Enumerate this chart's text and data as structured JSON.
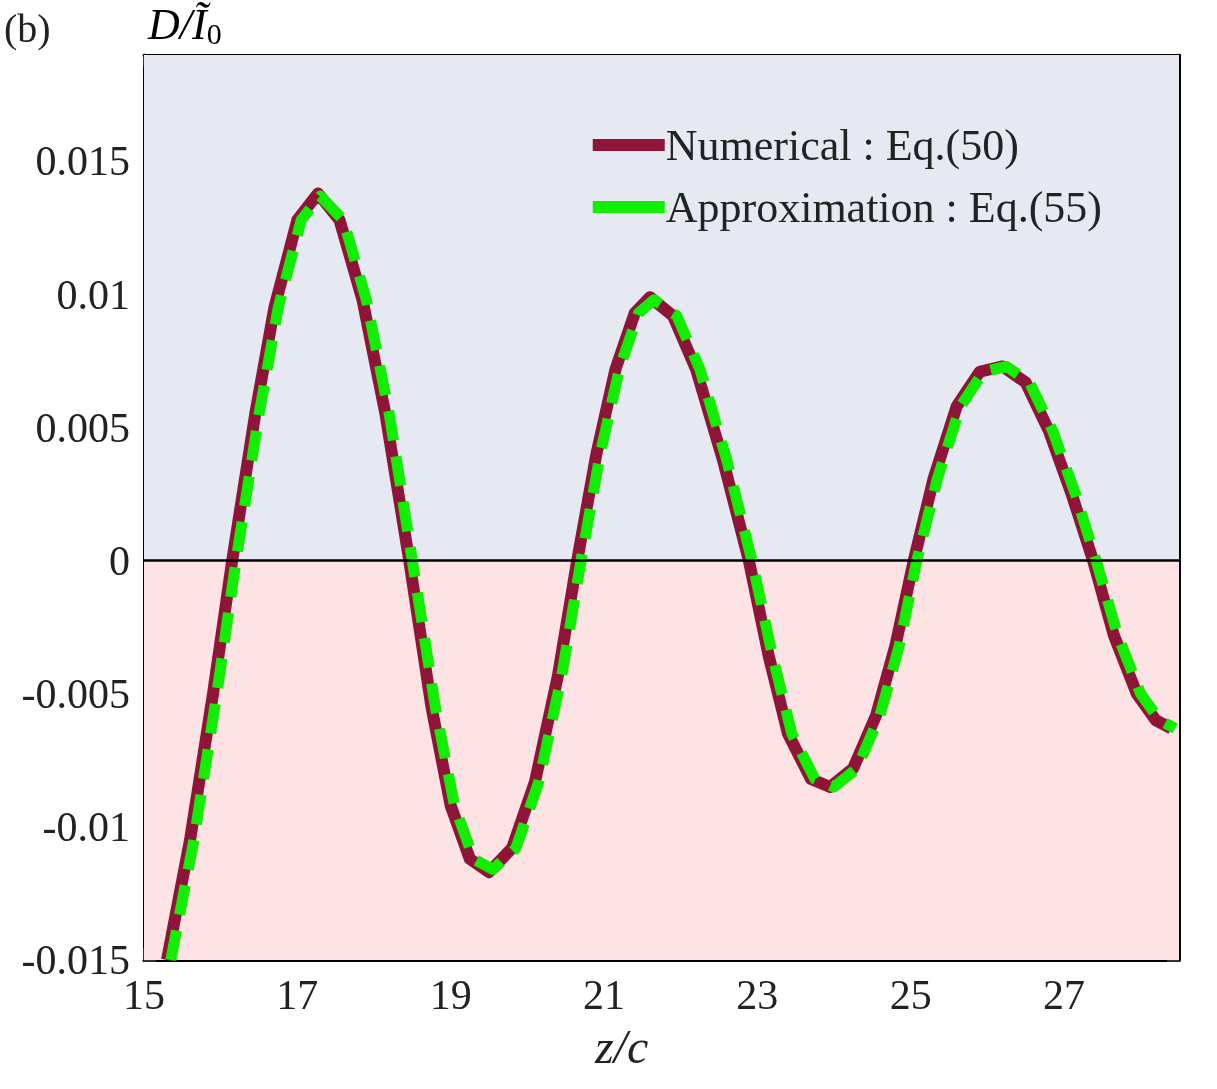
{
  "chart_data": {
    "type": "line",
    "xlabel": "z/c",
    "ylabel": "D/Ĩ$_{0}$",
    "annotations": [
      "(b)"
    ],
    "xlim": [
      15,
      28.5
    ],
    "xticks": [
      15,
      17,
      19,
      21,
      23,
      25,
      27
    ],
    "ylim": [
      -0.015,
      0.019
    ],
    "yticks": [
      -0.015,
      -0.01,
      -0.005,
      0,
      0.005,
      0.01,
      0.015
    ],
    "legend": "top right",
    "marker": "none",
    "bands": [
      {
        "axis": "y",
        "from": 0,
        "to": 0.019,
        "color": "#e6e9f2"
      },
      {
        "axis": "y",
        "from": -0.015,
        "to": 0,
        "color": "#fde3e4"
      }
    ],
    "ref_lines": [
      {
        "axis": "y",
        "value": 0,
        "color": "#000000",
        "line_style": "solid"
      }
    ],
    "series": [
      {
        "name": "Numerical : Eq.(50)",
        "color": "#8e1538",
        "line_style": "solid",
        "x": [
          15.3,
          15.6,
          15.9,
          16.15,
          16.45,
          16.7,
          17.0,
          17.27,
          17.55,
          17.85,
          18.15,
          18.46,
          18.75,
          19.0,
          19.25,
          19.5,
          19.8,
          20.1,
          20.4,
          20.65,
          20.9,
          21.15,
          21.4,
          21.6,
          21.9,
          22.2,
          22.55,
          22.89,
          23.15,
          23.4,
          23.7,
          23.95,
          24.25,
          24.55,
          24.8,
          25.04,
          25.3,
          25.6,
          25.9,
          26.2,
          26.5,
          26.8,
          27.1,
          27.38,
          27.65,
          27.95,
          28.2,
          28.4
        ],
        "values": [
          -0.015,
          -0.0105,
          -0.005,
          0,
          0.0055,
          0.0095,
          0.0128,
          0.0138,
          0.0128,
          0.0098,
          0.0055,
          0,
          -0.0055,
          -0.0092,
          -0.0112,
          -0.0117,
          -0.0108,
          -0.0083,
          -0.0043,
          0,
          0.004,
          0.0072,
          0.0093,
          0.0099,
          0.0092,
          0.0072,
          0.0038,
          0,
          -0.0036,
          -0.0065,
          -0.0082,
          -0.0085,
          -0.0078,
          -0.0058,
          -0.0032,
          0,
          0.0031,
          0.0058,
          0.0071,
          0.0073,
          0.0067,
          0.0049,
          0.0025,
          0,
          -0.0028,
          -0.005,
          -0.006,
          -0.0063
        ]
      },
      {
        "name": "Approximation : Eq.(55)",
        "color": "#11ee00",
        "line_style": "dashed",
        "x": [
          15.35,
          15.65,
          15.95,
          16.2,
          16.5,
          16.75,
          17.05,
          17.3,
          17.6,
          17.9,
          18.2,
          18.5,
          18.8,
          19.05,
          19.3,
          19.55,
          19.85,
          20.15,
          20.45,
          20.7,
          20.95,
          21.2,
          21.45,
          21.65,
          21.95,
          22.25,
          22.6,
          22.93,
          23.2,
          23.45,
          23.75,
          24.0,
          24.3,
          24.6,
          24.85,
          25.08,
          25.35,
          25.65,
          25.95,
          26.25,
          26.55,
          26.85,
          27.15,
          27.42,
          27.7,
          28.0,
          28.25,
          28.45
        ],
        "values": [
          -0.015,
          -0.0105,
          -0.005,
          0,
          0.0055,
          0.0095,
          0.0128,
          0.0137,
          0.0128,
          0.0098,
          0.0055,
          0,
          -0.0055,
          -0.0092,
          -0.0112,
          -0.0116,
          -0.0108,
          -0.0083,
          -0.0043,
          0,
          0.004,
          0.0072,
          0.0093,
          0.0098,
          0.0092,
          0.0072,
          0.0038,
          0,
          -0.0036,
          -0.0065,
          -0.0082,
          -0.0085,
          -0.0078,
          -0.0058,
          -0.0032,
          0,
          0.0031,
          0.0058,
          0.0071,
          0.0073,
          0.0067,
          0.0049,
          0.0025,
          0,
          -0.0028,
          -0.005,
          -0.006,
          -0.0063
        ]
      }
    ]
  }
}
